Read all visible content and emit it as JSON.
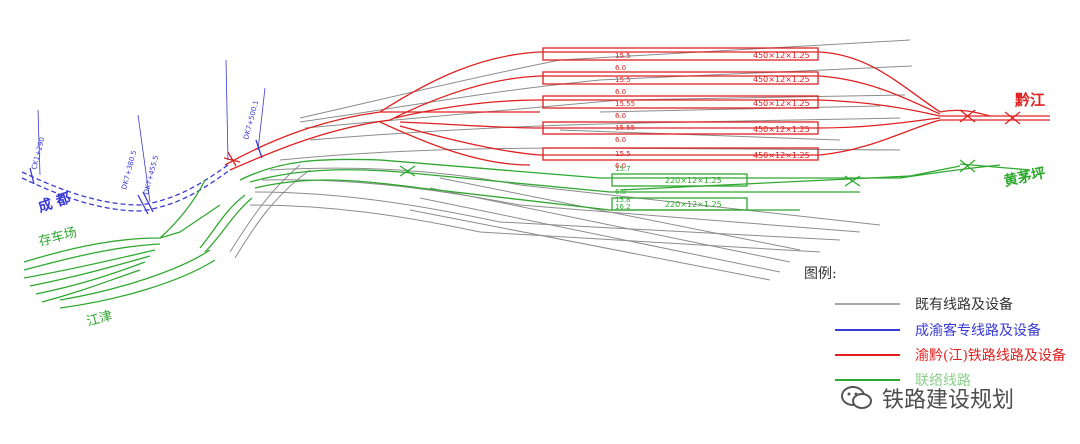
{
  "stations": {
    "chengdu": "成 都",
    "qianjiang": "黔江",
    "huangmaoping": "黄茅坪",
    "cunchechang": "存车场",
    "jiangjin": "江津"
  },
  "track_labels": {
    "red_grades": [
      "15.5",
      "6.0",
      "15.5",
      "6.0",
      "15.55",
      "6.0",
      "15.55",
      "6.0",
      "15.5",
      "6.0"
    ],
    "red_platforms": [
      "450×12×1.25",
      "450×12×1.25",
      "450×12×1.25",
      "450×12×1.25",
      "450×12×1.25"
    ],
    "green_grades": [
      "15.7",
      "6.0",
      "15.8",
      "16.2"
    ],
    "green_platforms": [
      "220×12×1.25",
      "220×12×1.25"
    ],
    "mileage_1": "CK1+290",
    "mileage_2": "DK7+380.5",
    "mileage_3": "DK7+455.5",
    "mileage_4": "DK7+500.1"
  },
  "legend": {
    "title": "图例:",
    "items": [
      {
        "label": "既有线路及设备",
        "color": "#8c8c8c"
      },
      {
        "label": "成渝客专线路及设备",
        "color": "#3a3ad6"
      },
      {
        "label": "渝黔(江)铁路线路及设备",
        "color": "#e02020"
      },
      {
        "label": "联络线路",
        "color": "#2fa82f"
      }
    ]
  },
  "watermark": "铁路建设规划",
  "colors": {
    "existing": "#8c8c8c",
    "chengyu": "#3a3ad6",
    "yuqian": "#e02020",
    "connector": "#2fa82f"
  }
}
